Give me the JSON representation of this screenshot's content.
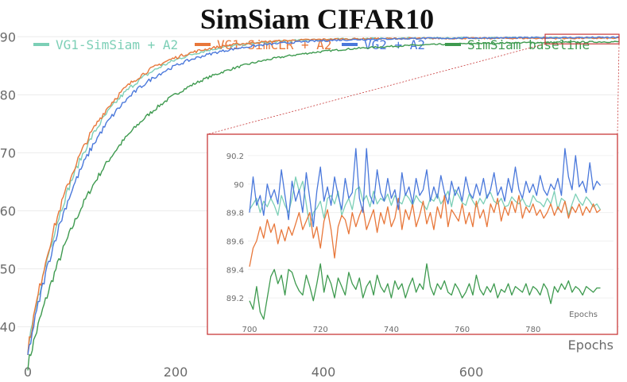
{
  "chart_data": {
    "type": "line",
    "title": "SimSiam CIFAR10",
    "xlabel": "Epochs",
    "ylabel": "",
    "xlim": [
      0,
      800
    ],
    "ylim": [
      35,
      91
    ],
    "xticks": [
      "0",
      "200",
      "400",
      "600"
    ],
    "yticks": [
      "40",
      "50",
      "60",
      "70",
      "80",
      "90"
    ],
    "grid": "horizontal",
    "legend": "top",
    "series": [
      {
        "name": "VG1-SimSiam + A2",
        "color": "#7ccfb6",
        "curve": {
          "start": 36,
          "final": 89.85,
          "tau": 75,
          "lag": 0.2
        }
      },
      {
        "name": "VG1-SimCLR + A2",
        "color": "#e8773a",
        "curve": {
          "start": 36,
          "final": 89.75,
          "tau": 72,
          "lag": 0.0
        }
      },
      {
        "name": "VG2 + A2",
        "color": "#4a78db",
        "curve": {
          "start": 36,
          "final": 89.95,
          "tau": 80,
          "lag": 1.0
        }
      },
      {
        "name": "SimSiam baseline",
        "color": "#3e9a4f",
        "curve": {
          "start": 36,
          "final": 89.35,
          "tau": 105,
          "lag": 2.6
        }
      }
    ],
    "inset": {
      "xlabel": "Epochs",
      "xlim": [
        700,
        800
      ],
      "ylim": [
        89.05,
        90.3
      ],
      "xticks": [
        "700",
        "720",
        "740",
        "760",
        "780"
      ],
      "yticks": [
        "89.2",
        "89.4",
        "89.6",
        "89.8",
        "90",
        "90.2"
      ],
      "zoom_region": {
        "x": [
          700,
          800
        ],
        "y": [
          89.05,
          90.3
        ]
      },
      "series": [
        {
          "name": "VG1-SimSiam + A2",
          "x_start": 700,
          "x_step": 1,
          "values": [
            89.82,
            89.86,
            89.9,
            89.8,
            89.88,
            89.84,
            89.9,
            89.85,
            89.78,
            89.92,
            89.85,
            89.8,
            89.9,
            90.05,
            89.95,
            90.02,
            89.86,
            89.7,
            89.8,
            89.83,
            89.88,
            89.76,
            89.9,
            89.92,
            89.86,
            89.95,
            89.78,
            89.85,
            89.9,
            89.82,
            89.96,
            89.98,
            89.88,
            89.92,
            89.84,
            89.95,
            89.86,
            89.9,
            89.88,
            89.93,
            89.85,
            89.92,
            89.88,
            89.86,
            89.93,
            89.9,
            89.85,
            89.92,
            89.88,
            89.86,
            89.82,
            89.9,
            89.88,
            89.93,
            89.86,
            89.9,
            89.95,
            89.84,
            89.96,
            89.92,
            89.87,
            89.85,
            89.93,
            89.88,
            89.84,
            89.9,
            89.86,
            89.92,
            89.94,
            89.88,
            89.86,
            89.9,
            89.84,
            89.85,
            89.91,
            89.88,
            89.86,
            89.9,
            89.85,
            89.84,
            89.92,
            89.88,
            89.87,
            89.84,
            89.9,
            89.86,
            89.95,
            89.82,
            89.9,
            89.88,
            89.78,
            89.86,
            89.93,
            89.88,
            89.85,
            89.91,
            89.88,
            89.84,
            89.86,
            89.82
          ]
        },
        {
          "name": "VG1-SimCLR + A2",
          "x_start": 700,
          "x_step": 1,
          "values": [
            89.42,
            89.55,
            89.6,
            89.7,
            89.62,
            89.75,
            89.66,
            89.72,
            89.58,
            89.68,
            89.6,
            89.7,
            89.64,
            89.72,
            89.8,
            89.68,
            89.74,
            89.8,
            89.62,
            89.7,
            89.55,
            89.74,
            89.82,
            89.68,
            89.48,
            89.7,
            89.78,
            89.75,
            89.65,
            89.8,
            89.7,
            89.78,
            89.84,
            89.68,
            89.75,
            89.82,
            89.66,
            89.8,
            89.72,
            89.84,
            89.7,
            89.76,
            89.9,
            89.68,
            89.82,
            89.75,
            89.86,
            89.7,
            89.78,
            89.88,
            89.72,
            89.8,
            89.68,
            89.84,
            89.76,
            89.92,
            89.7,
            89.82,
            89.78,
            89.74,
            89.86,
            89.72,
            89.8,
            89.7,
            89.88,
            89.76,
            89.82,
            89.7,
            89.86,
            89.8,
            89.9,
            89.74,
            89.84,
            89.78,
            89.88,
            89.8,
            89.92,
            89.76,
            89.84,
            89.8,
            89.86,
            89.78,
            89.82,
            89.76,
            89.8,
            89.86,
            89.78,
            89.84,
            89.8,
            89.88,
            89.76,
            89.84,
            89.8,
            89.86,
            89.78,
            89.84,
            89.8,
            89.86,
            89.8,
            89.82
          ]
        },
        {
          "name": "VG2 + A2",
          "x_start": 700,
          "x_step": 1,
          "values": [
            89.8,
            90.05,
            89.85,
            89.92,
            89.78,
            90.0,
            89.9,
            89.96,
            89.86,
            90.1,
            89.92,
            89.75,
            90.02,
            89.88,
            89.96,
            89.8,
            90.08,
            89.9,
            89.7,
            89.95,
            90.12,
            89.88,
            89.98,
            89.85,
            90.05,
            89.92,
            89.82,
            90.04,
            89.9,
            89.94,
            90.25,
            89.9,
            89.8,
            90.25,
            89.92,
            89.86,
            90.1,
            89.94,
            89.88,
            90.04,
            89.9,
            89.96,
            89.82,
            90.08,
            89.92,
            89.98,
            89.86,
            90.04,
            89.92,
            89.96,
            90.1,
            89.88,
            89.98,
            89.9,
            90.06,
            89.94,
            89.86,
            90.02,
            89.92,
            89.98,
            89.88,
            90.05,
            89.94,
            89.9,
            90.0,
            89.92,
            90.04,
            89.9,
            89.96,
            90.08,
            89.92,
            89.98,
            89.88,
            90.04,
            89.94,
            90.12,
            89.96,
            89.9,
            90.02,
            89.94,
            90.0,
            89.92,
            90.06,
            89.96,
            89.92,
            90.0,
            89.96,
            90.04,
            89.92,
            90.25,
            90.05,
            89.96,
            90.2,
            89.98,
            90.02,
            89.94,
            90.15,
            89.96,
            90.02,
            89.99
          ]
        },
        {
          "name": "SimSiam baseline",
          "x_start": 700,
          "x_step": 1,
          "values": [
            89.18,
            89.12,
            89.28,
            89.1,
            89.05,
            89.2,
            89.35,
            89.4,
            89.3,
            89.36,
            89.22,
            89.4,
            89.38,
            89.3,
            89.25,
            89.22,
            89.36,
            89.28,
            89.18,
            89.3,
            89.44,
            89.24,
            89.36,
            89.3,
            89.2,
            89.34,
            89.28,
            89.22,
            89.38,
            89.3,
            89.26,
            89.34,
            89.2,
            89.28,
            89.32,
            89.22,
            89.36,
            89.28,
            89.24,
            89.3,
            89.2,
            89.32,
            89.26,
            89.3,
            89.2,
            89.28,
            89.34,
            89.24,
            89.3,
            89.26,
            89.44,
            89.28,
            89.22,
            89.3,
            89.26,
            89.32,
            89.24,
            89.22,
            89.3,
            89.26,
            89.2,
            89.24,
            89.3,
            89.22,
            89.36,
            89.26,
            89.22,
            89.28,
            89.24,
            89.3,
            89.2,
            89.26,
            89.24,
            89.3,
            89.22,
            89.28,
            89.26,
            89.24,
            89.3,
            89.22,
            89.28,
            89.26,
            89.22,
            89.3,
            89.26,
            89.16,
            89.28,
            89.24,
            89.3,
            89.26,
            89.32,
            89.24,
            89.28,
            89.26,
            89.22,
            89.28,
            89.26,
            89.24,
            89.27,
            89.27
          ]
        }
      ]
    }
  }
}
